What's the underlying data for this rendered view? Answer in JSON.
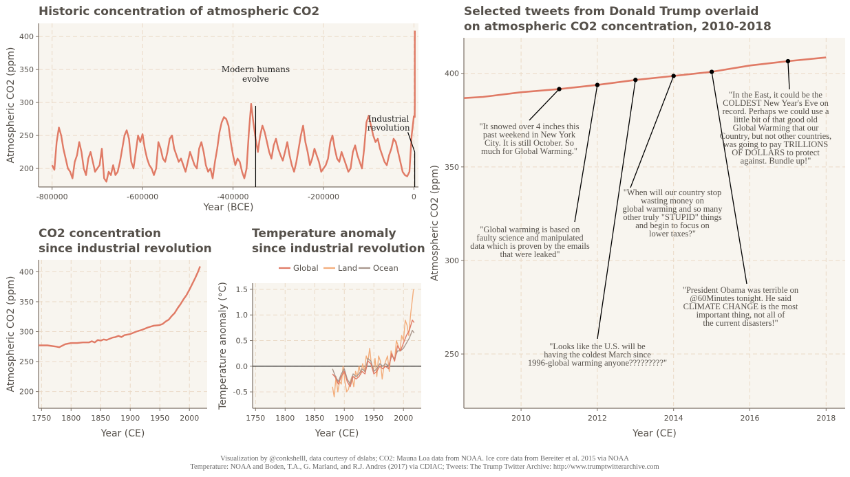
{
  "colors": {
    "panel_bg": "#f8f5ef",
    "grid": "#ead9c6",
    "axis": "#7a6f64",
    "co2_line": "#e07a65",
    "global": "#e07a65",
    "land": "#f3ad7b",
    "ocean": "#a8968c",
    "tweet_dot": "#000000",
    "leader": "#000000"
  },
  "chart_data": [
    {
      "id": "historic",
      "type": "line",
      "title": "Historic concentration of atmospheric CO2",
      "xlabel": "Year (BCE)",
      "ylabel": "Atmospheric CO2 (ppm)",
      "xlim": [
        -830000,
        10000
      ],
      "ylim": [
        172,
        420
      ],
      "x_ticks": [
        -800000,
        -600000,
        -400000,
        -200000,
        0
      ],
      "x_tick_labels": [
        "-800000",
        "-600000",
        "-400000",
        "-200000",
        "0"
      ],
      "y_ticks": [
        200,
        250,
        300,
        350,
        400
      ],
      "grid": true,
      "series": [
        {
          "x": [
            -800000,
            -795000,
            -790000,
            -785000,
            -780000,
            -775000,
            -770000,
            -765000,
            -760000,
            -755000,
            -750000,
            -745000,
            -740000,
            -735000,
            -730000,
            -725000,
            -720000,
            -715000,
            -710000,
            -705000,
            -700000,
            -695000,
            -690000,
            -685000,
            -680000,
            -675000,
            -670000,
            -665000,
            -660000,
            -655000,
            -650000,
            -645000,
            -640000,
            -635000,
            -630000,
            -625000,
            -620000,
            -615000,
            -610000,
            -605000,
            -600000,
            -595000,
            -590000,
            -585000,
            -580000,
            -575000,
            -570000,
            -565000,
            -560000,
            -555000,
            -550000,
            -545000,
            -540000,
            -535000,
            -530000,
            -525000,
            -520000,
            -515000,
            -510000,
            -505000,
            -500000,
            -495000,
            -490000,
            -485000,
            -480000,
            -475000,
            -470000,
            -465000,
            -460000,
            -455000,
            -450000,
            -445000,
            -440000,
            -435000,
            -430000,
            -425000,
            -420000,
            -415000,
            -410000,
            -405000,
            -400000,
            -395000,
            -390000,
            -385000,
            -380000,
            -375000,
            -370000,
            -365000,
            -360000,
            -355000,
            -350000,
            -345000,
            -340000,
            -335000,
            -330000,
            -325000,
            -320000,
            -315000,
            -310000,
            -305000,
            -300000,
            -295000,
            -290000,
            -285000,
            -280000,
            -275000,
            -270000,
            -265000,
            -260000,
            -255000,
            -250000,
            -245000,
            -240000,
            -235000,
            -230000,
            -225000,
            -220000,
            -215000,
            -210000,
            -205000,
            -200000,
            -195000,
            -190000,
            -185000,
            -180000,
            -175000,
            -170000,
            -165000,
            -160000,
            -155000,
            -150000,
            -145000,
            -140000,
            -135000,
            -130000,
            -125000,
            -120000,
            -115000,
            -110000,
            -105000,
            -100000,
            -95000,
            -90000,
            -85000,
            -80000,
            -75000,
            -70000,
            -65000,
            -60000,
            -55000,
            -50000,
            -45000,
            -40000,
            -35000,
            -30000,
            -25000,
            -20000,
            -15000,
            -10000,
            -5000,
            0
          ],
          "y": [
            205,
            198,
            240,
            262,
            250,
            230,
            215,
            200,
            195,
            185,
            210,
            220,
            240,
            225,
            200,
            190,
            215,
            225,
            210,
            195,
            200,
            205,
            230,
            185,
            180,
            195,
            190,
            205,
            190,
            195,
            210,
            230,
            250,
            258,
            245,
            210,
            200,
            225,
            250,
            240,
            252,
            230,
            215,
            205,
            200,
            190,
            200,
            240,
            230,
            215,
            210,
            225,
            245,
            250,
            230,
            220,
            210,
            215,
            205,
            195,
            210,
            225,
            215,
            205,
            200,
            230,
            240,
            225,
            205,
            195,
            200,
            185,
            210,
            230,
            255,
            270,
            278,
            275,
            265,
            240,
            220,
            205,
            215,
            210,
            195,
            185,
            200,
            255,
            298,
            270,
            245,
            225,
            250,
            265,
            255,
            240,
            225,
            215,
            235,
            245,
            230,
            220,
            212,
            225,
            240,
            220,
            205,
            195,
            210,
            230,
            250,
            265,
            240,
            225,
            205,
            215,
            230,
            220,
            210,
            195,
            200,
            205,
            215,
            240,
            250,
            230,
            215,
            210,
            225,
            215,
            205,
            195,
            200,
            225,
            235,
            220,
            210,
            200,
            230,
            270,
            280,
            265,
            250,
            240,
            245,
            230,
            220,
            210,
            205,
            220,
            230,
            245,
            240,
            225,
            210,
            195,
            190,
            188,
            195,
            250,
            280
          ]
        },
        {
          "x": [
            1750,
            1800,
            1850,
            1900,
            1950,
            1970,
            1990,
            2000,
            2010,
            2018
          ],
          "y": [
            277,
            282,
            285,
            296,
            311,
            326,
            354,
            370,
            390,
            409
          ]
        }
      ],
      "annotations": [
        {
          "lines": [
            "Modern humans",
            "evolve"
          ],
          "x": -350000
        },
        {
          "lines": [
            "Industrial",
            "revolution"
          ],
          "x": 1750
        }
      ]
    },
    {
      "id": "co2-industrial",
      "type": "line",
      "title": [
        "CO2 concentration",
        "since industrial revolution"
      ],
      "xlabel": "Year (CE)",
      "ylabel": "Atmospheric CO2 (ppm)",
      "xlim": [
        1745,
        2030
      ],
      "ylim": [
        172,
        420
      ],
      "x_ticks": [
        1750,
        1800,
        1850,
        1900,
        1950,
        2000
      ],
      "y_ticks": [
        200,
        250,
        300,
        350,
        400
      ],
      "grid": true,
      "series": [
        {
          "x": [
            1745,
            1760,
            1775,
            1780,
            1790,
            1800,
            1810,
            1820,
            1830,
            1835,
            1840,
            1845,
            1850,
            1855,
            1860,
            1870,
            1875,
            1880,
            1885,
            1890,
            1900,
            1905,
            1910,
            1920,
            1930,
            1940,
            1950,
            1955,
            1960,
            1965,
            1970,
            1975,
            1980,
            1985,
            1990,
            1995,
            2000,
            2005,
            2010,
            2015,
            2018
          ],
          "y": [
            277,
            277,
            275,
            274,
            279,
            281,
            281,
            282,
            282,
            284,
            282,
            286,
            285,
            287,
            286,
            290,
            291,
            293,
            291,
            294,
            296,
            298,
            300,
            303,
            307,
            310,
            311,
            313,
            317,
            320,
            326,
            331,
            339,
            346,
            354,
            361,
            370,
            380,
            390,
            401,
            409
          ]
        }
      ]
    },
    {
      "id": "temperature",
      "type": "line",
      "title": [
        "Temperature anomaly",
        "since industrial revolution"
      ],
      "xlabel": "Year (CE)",
      "ylabel": "Temperature anomaly (°C)",
      "xlim": [
        1745,
        2030
      ],
      "ylim": [
        -0.82,
        1.62
      ],
      "x_ticks": [
        1750,
        1800,
        1850,
        1900,
        1950,
        2000
      ],
      "y_ticks": [
        -0.5,
        0.0,
        0.5,
        1.0,
        1.5
      ],
      "y_tick_labels": [
        "-0.5",
        "0.0",
        "0.5",
        "1.0",
        "1.5"
      ],
      "grid": true,
      "legend": {
        "placement": "top",
        "entries": [
          "Global",
          "Land",
          "Ocean"
        ]
      },
      "series": [
        {
          "name": "Global",
          "x": [
            1880,
            1885,
            1890,
            1895,
            1900,
            1905,
            1910,
            1915,
            1920,
            1925,
            1930,
            1935,
            1940,
            1945,
            1950,
            1955,
            1960,
            1965,
            1970,
            1975,
            1980,
            1985,
            1990,
            1995,
            2000,
            2005,
            2010,
            2015,
            2018
          ],
          "y": [
            -0.15,
            -0.22,
            -0.35,
            -0.2,
            -0.1,
            -0.3,
            -0.4,
            -0.2,
            -0.25,
            -0.2,
            -0.1,
            -0.15,
            0.1,
            0.05,
            -0.15,
            -0.1,
            0.0,
            -0.05,
            0.0,
            -0.05,
            0.25,
            0.1,
            0.4,
            0.3,
            0.45,
            0.6,
            0.7,
            0.9,
            0.85
          ]
        },
        {
          "name": "Land",
          "x": [
            1880,
            1883,
            1886,
            1889,
            1892,
            1895,
            1898,
            1901,
            1904,
            1907,
            1910,
            1913,
            1916,
            1919,
            1922,
            1925,
            1928,
            1931,
            1934,
            1937,
            1940,
            1943,
            1946,
            1949,
            1952,
            1955,
            1958,
            1961,
            1964,
            1967,
            1970,
            1973,
            1976,
            1979,
            1982,
            1985,
            1988,
            1991,
            1994,
            1997,
            2000,
            2003,
            2006,
            2009,
            2012,
            2015,
            2017
          ],
          "y": [
            -0.4,
            -0.6,
            -0.2,
            -0.5,
            -0.3,
            -0.35,
            0.0,
            -0.3,
            -0.5,
            -0.45,
            -0.3,
            -0.2,
            -0.4,
            -0.1,
            -0.2,
            0.0,
            -0.15,
            0.05,
            -0.1,
            0.2,
            0.1,
            0.35,
            0.0,
            -0.1,
            0.15,
            -0.2,
            0.2,
            0.1,
            -0.25,
            0.0,
            0.1,
            0.2,
            -0.1,
            0.3,
            0.2,
            0.1,
            0.5,
            0.4,
            0.3,
            0.6,
            0.5,
            0.9,
            0.8,
            0.6,
            1.0,
            1.3,
            1.5
          ]
        },
        {
          "name": "Ocean",
          "x": [
            1880,
            1885,
            1890,
            1895,
            1900,
            1905,
            1910,
            1915,
            1920,
            1925,
            1930,
            1935,
            1940,
            1945,
            1950,
            1955,
            1960,
            1965,
            1970,
            1975,
            1980,
            1985,
            1990,
            1995,
            2000,
            2005,
            2010,
            2015,
            2018
          ],
          "y": [
            -0.05,
            -0.2,
            -0.3,
            -0.15,
            -0.05,
            -0.25,
            -0.35,
            -0.15,
            -0.2,
            -0.15,
            -0.05,
            -0.1,
            0.15,
            0.1,
            -0.1,
            -0.05,
            0.05,
            0.0,
            0.05,
            0.0,
            0.2,
            0.15,
            0.3,
            0.3,
            0.35,
            0.45,
            0.55,
            0.7,
            0.65
          ]
        }
      ]
    },
    {
      "id": "tweets",
      "type": "line",
      "title": [
        "Selected tweets from Donald Trump overlaid",
        "on atmospheric CO2 concentration, 2010-2018"
      ],
      "xlabel": "Year (CE)",
      "ylabel": "Atmospheric CO2 (ppm)",
      "xlim": [
        2008.5,
        2018.5
      ],
      "ylim": [
        221,
        419
      ],
      "x_ticks": [
        2010,
        2012,
        2014,
        2016,
        2018
      ],
      "y_ticks": [
        250,
        300,
        350,
        400
      ],
      "grid": true,
      "series": [
        {
          "x": [
            2008.5,
            2009,
            2010,
            2011,
            2012,
            2013,
            2014,
            2015,
            2016,
            2017,
            2018
          ],
          "y": [
            386.8,
            387.4,
            389.9,
            391.6,
            393.8,
            396.5,
            398.6,
            400.8,
            404.2,
            406.5,
            408.5
          ]
        }
      ],
      "tweets": [
        {
          "x": 2011,
          "y": 391.6,
          "lines": [
            "\"It snowed over 4 inches this",
            "past weekend in New York",
            "City. It is still October. So",
            "much for Global Warming.\""
          ]
        },
        {
          "x": 2012,
          "y": 393.8,
          "lines": [
            "\"Global warming is based on",
            "faulty science and manipulated",
            "data which is proven by the emails",
            "that were leaked\""
          ]
        },
        {
          "x": 2013,
          "y": 396.5,
          "lines": [
            "\"Looks like the U.S. will be",
            "having the coldest March since",
            "1996-global warming anyone?????????\""
          ]
        },
        {
          "x": 2014,
          "y": 398.6,
          "lines": [
            "\"When will our country stop",
            "wasting money on",
            "global warming and so many",
            "other truly \"STUPID\" things",
            "and begin to focus on",
            "lower taxes?\""
          ]
        },
        {
          "x": 2015,
          "y": 400.8,
          "lines": [
            "\"President Obama was terrible on",
            "@60Minutes tonight. He said",
            "CLIMATE CHANGE is the most",
            "important thing, not all of",
            "the current disasters!\""
          ]
        },
        {
          "x": 2017,
          "y": 406.5,
          "lines": [
            "\"In the East, it could be the",
            "COLDEST New Year's Eve on",
            "record. Perhaps we could use a",
            "little bit of that good old",
            "Global Warming that our",
            "Country, but not other countries,",
            "was going to pay TRILLIONS",
            "OF DOLLARS to protect",
            "against. Bundle up!\""
          ]
        }
      ]
    }
  ],
  "caption": [
    "Visualization by @conkshelll, data courtesy of dslabs; CO2: Mauna Loa data from NOAA. Ice core data from Bereiter et al. 2015 via NOAA",
    "Temperature: NOAA and Boden, T.A., G. Marland, and R.J. Andres (2017) via CDIAC; Tweets: The Trump Twitter Archive: http://www.trumptwitterarchive.com"
  ]
}
